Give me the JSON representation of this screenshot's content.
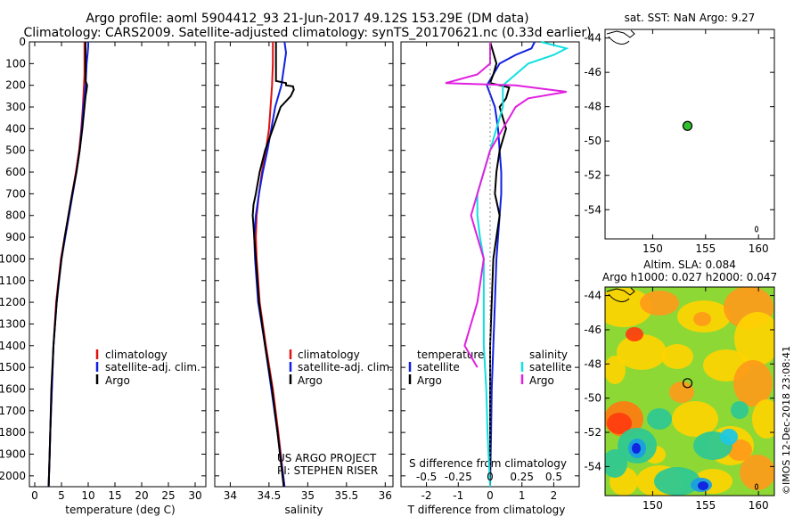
{
  "header": {
    "title_line1": "Argo profile: aoml 5904412_93 21-Jun-2017 49.12S 153.29E (DM data)",
    "title_line2": "Climatology: CARS2009. Satellite-adjusted climatology: synTS_20170621.nc (0.33d earlier)"
  },
  "colors": {
    "climatology": "#e01010",
    "satellite": "#1020e0",
    "argo": "#000000",
    "argo_salinity_diff": "#e020e0",
    "satellite_salinity_diff": "#10e0e0"
  },
  "depth_axis": {
    "ylim": [
      0,
      2050
    ],
    "ticks": [
      0,
      100,
      200,
      300,
      400,
      500,
      600,
      700,
      800,
      900,
      1000,
      1100,
      1200,
      1300,
      1400,
      1500,
      1600,
      1700,
      1800,
      1900,
      2000
    ]
  },
  "chart_data": [
    {
      "type": "line",
      "id": "temperature",
      "xlabel": "temperature (deg C)",
      "xlim": [
        -1,
        32
      ],
      "xticks": [
        0,
        5,
        10,
        15,
        20,
        25,
        30
      ],
      "legend": [
        "climatology",
        "satellite-adj. clim.",
        "Argo"
      ],
      "series": [
        {
          "name": "climatology",
          "color": "red",
          "depth": [
            0,
            50,
            100,
            150,
            200,
            300,
            400,
            500,
            600,
            700,
            800,
            900,
            1000,
            1200,
            1400,
            1600,
            1800,
            2050
          ],
          "values": [
            9.3,
            9.3,
            9.3,
            9.3,
            9.2,
            9.0,
            8.7,
            8.3,
            7.7,
            7.0,
            6.3,
            5.6,
            4.9,
            4.0,
            3.5,
            3.2,
            2.9,
            2.6
          ]
        },
        {
          "name": "satellite-adj. clim.",
          "color": "blue",
          "depth": [
            0,
            20,
            50,
            100,
            150,
            200,
            300,
            400,
            500,
            600,
            700,
            800,
            900,
            1000,
            1200,
            1400,
            1600,
            1800,
            2050
          ],
          "values": [
            10.0,
            10.0,
            9.9,
            9.7,
            9.6,
            9.5,
            9.1,
            8.8,
            8.4,
            7.8,
            7.1,
            6.4,
            5.7,
            5.0,
            4.1,
            3.5,
            3.2,
            2.9,
            2.6
          ]
        },
        {
          "name": "Argo",
          "color": "black",
          "depth": [
            0,
            50,
            100,
            150,
            180,
            200,
            220,
            250,
            300,
            400,
            500,
            600,
            700,
            800,
            900,
            1000,
            1100,
            1200,
            1300,
            1400,
            1500,
            1600,
            1700,
            1800,
            1900,
            2050
          ],
          "values": [
            9.5,
            9.5,
            9.5,
            9.5,
            9.5,
            9.8,
            9.7,
            9.5,
            9.3,
            8.9,
            8.4,
            7.8,
            7.0,
            6.3,
            5.6,
            5.0,
            4.5,
            4.1,
            3.8,
            3.5,
            3.3,
            3.1,
            3.0,
            2.9,
            2.8,
            2.6
          ]
        }
      ]
    },
    {
      "type": "line",
      "id": "salinity",
      "xlabel": "salinity",
      "xlim": [
        33.8,
        36.1
      ],
      "xticks": [
        34,
        34.5,
        35,
        35.5,
        36
      ],
      "legend": [
        "climatology",
        "satellite-adj. clim.",
        "Argo"
      ],
      "series": [
        {
          "name": "climatology",
          "color": "red",
          "depth": [
            0,
            100,
            200,
            300,
            400,
            500,
            600,
            700,
            800,
            900,
            1000,
            1200,
            1400,
            1600,
            1800,
            2050
          ],
          "values": [
            34.55,
            34.55,
            34.54,
            34.52,
            34.5,
            34.46,
            34.41,
            34.37,
            34.34,
            34.33,
            34.34,
            34.38,
            34.46,
            34.55,
            34.62,
            34.7
          ]
        },
        {
          "name": "satellite-adj. clim.",
          "color": "blue",
          "depth": [
            0,
            50,
            100,
            150,
            200,
            250,
            300,
            400,
            500,
            600,
            700,
            800,
            900,
            1000,
            1200,
            1400,
            1600,
            1800,
            2050
          ],
          "values": [
            34.7,
            34.72,
            34.7,
            34.68,
            34.66,
            34.62,
            34.58,
            34.53,
            34.48,
            34.42,
            34.37,
            34.33,
            34.31,
            34.32,
            34.36,
            34.45,
            34.53,
            34.61,
            34.7
          ]
        },
        {
          "name": "Argo",
          "color": "black",
          "depth": [
            0,
            180,
            190,
            200,
            205,
            220,
            250,
            300,
            400,
            500,
            600,
            700,
            750,
            800,
            850,
            900,
            1000,
            1200,
            1400,
            1600,
            1800,
            2050
          ],
          "values": [
            34.59,
            34.59,
            34.72,
            34.72,
            34.81,
            34.82,
            34.78,
            34.65,
            34.55,
            34.45,
            34.38,
            34.33,
            34.3,
            34.29,
            34.3,
            34.31,
            34.33,
            34.37,
            34.45,
            34.54,
            34.61,
            34.69
          ]
        }
      ]
    },
    {
      "type": "line",
      "id": "difference",
      "xlabel": "T difference from climatology",
      "secondary_xlabel": "S difference from climatology",
      "xlim": [
        -2.8,
        2.8
      ],
      "xticks": [
        -2,
        -1,
        0,
        1,
        2
      ],
      "secondary_ticks": [
        "-0.5",
        "-0.25",
        "0",
        "0.25",
        "0.5"
      ],
      "legend_left_title": "temperature",
      "legend_right_title": "salinity",
      "legend": [
        "satellite",
        "Argo",
        "satellite",
        "Argo"
      ],
      "series": [
        {
          "name": "T satellite",
          "color": "blue",
          "depth": [
            0,
            30,
            60,
            100,
            150,
            200,
            300,
            400,
            500,
            600,
            700,
            800,
            900,
            1000,
            1200,
            1400,
            1600,
            1800,
            2050
          ],
          "values": [
            1.4,
            1.3,
            0.8,
            0.3,
            0.1,
            -0.1,
            0.15,
            0.25,
            0.3,
            0.35,
            0.35,
            0.3,
            0.25,
            0.2,
            0.15,
            0.1,
            0.05,
            0.03,
            0
          ]
        },
        {
          "name": "T Argo",
          "color": "black",
          "depth": [
            0,
            50,
            100,
            150,
            190,
            210,
            260,
            300,
            400,
            500,
            600,
            700,
            800,
            900,
            1000,
            1200,
            1400,
            1600,
            1800,
            2050
          ],
          "values": [
            0,
            0.1,
            0.2,
            0.1,
            0,
            0.6,
            0.5,
            0.3,
            0.5,
            0.3,
            0.2,
            0.15,
            0.3,
            0.2,
            0.1,
            0.05,
            0,
            0,
            0,
            0
          ]
        },
        {
          "name": "S satellite",
          "color": "cyan",
          "depth": [
            0,
            30,
            60,
            100,
            150,
            200,
            300,
            400,
            500,
            600,
            700,
            800,
            900,
            1000,
            1200,
            1400,
            1600,
            1800,
            2050
          ],
          "values": [
            0.4,
            0.6,
            0.5,
            0.3,
            0.2,
            0.1,
            0.1,
            0.05,
            0.0,
            -0.05,
            -0.1,
            -0.1,
            -0.08,
            -0.05,
            -0.05,
            -0.05,
            -0.03,
            -0.02,
            0
          ]
        },
        {
          "name": "S Argo",
          "color": "magenta",
          "depth": [
            0,
            100,
            150,
            190,
            200,
            230,
            260,
            300,
            400,
            500,
            600,
            700,
            800,
            900,
            1000,
            1200,
            1400,
            1500
          ],
          "values": [
            0,
            0,
            -0.1,
            -0.35,
            0.2,
            0.6,
            0.3,
            0.2,
            0.1,
            0,
            -0.05,
            -0.1,
            -0.15,
            -0.1,
            -0.05,
            -0.1,
            -0.2,
            -0.1
          ]
        }
      ]
    },
    {
      "type": "scatter",
      "id": "sst_map",
      "title": "sat. SST: NaN Argo: 9.27",
      "xlim": [
        145.5,
        161.5
      ],
      "ylim": [
        -55.7,
        -43.5
      ],
      "xticks": [
        150,
        155,
        160
      ],
      "yticks": [
        -44,
        -46,
        -48,
        -50,
        -52,
        -54
      ],
      "point": {
        "lon": 153.29,
        "lat": -49.12
      }
    },
    {
      "type": "heatmap",
      "id": "sla_map",
      "title": "Altim. SLA: 0.084",
      "subtitle": "Argo h1000: 0.027 h2000: 0.047",
      "xlim": [
        145.5,
        161.5
      ],
      "ylim": [
        -55.7,
        -43.5
      ],
      "xticks": [
        150,
        155,
        160
      ],
      "yticks": [
        -44,
        -46,
        -48,
        -50,
        -52,
        -54
      ],
      "point": {
        "lon": 153.29,
        "lat": -49.12
      }
    }
  ],
  "labels": {
    "us_argo": "US ARGO PROJECT",
    "pi": "PI: STEPHEN RISER",
    "watermark": "©IMOS 12-Dec-2018 23:08:41"
  }
}
